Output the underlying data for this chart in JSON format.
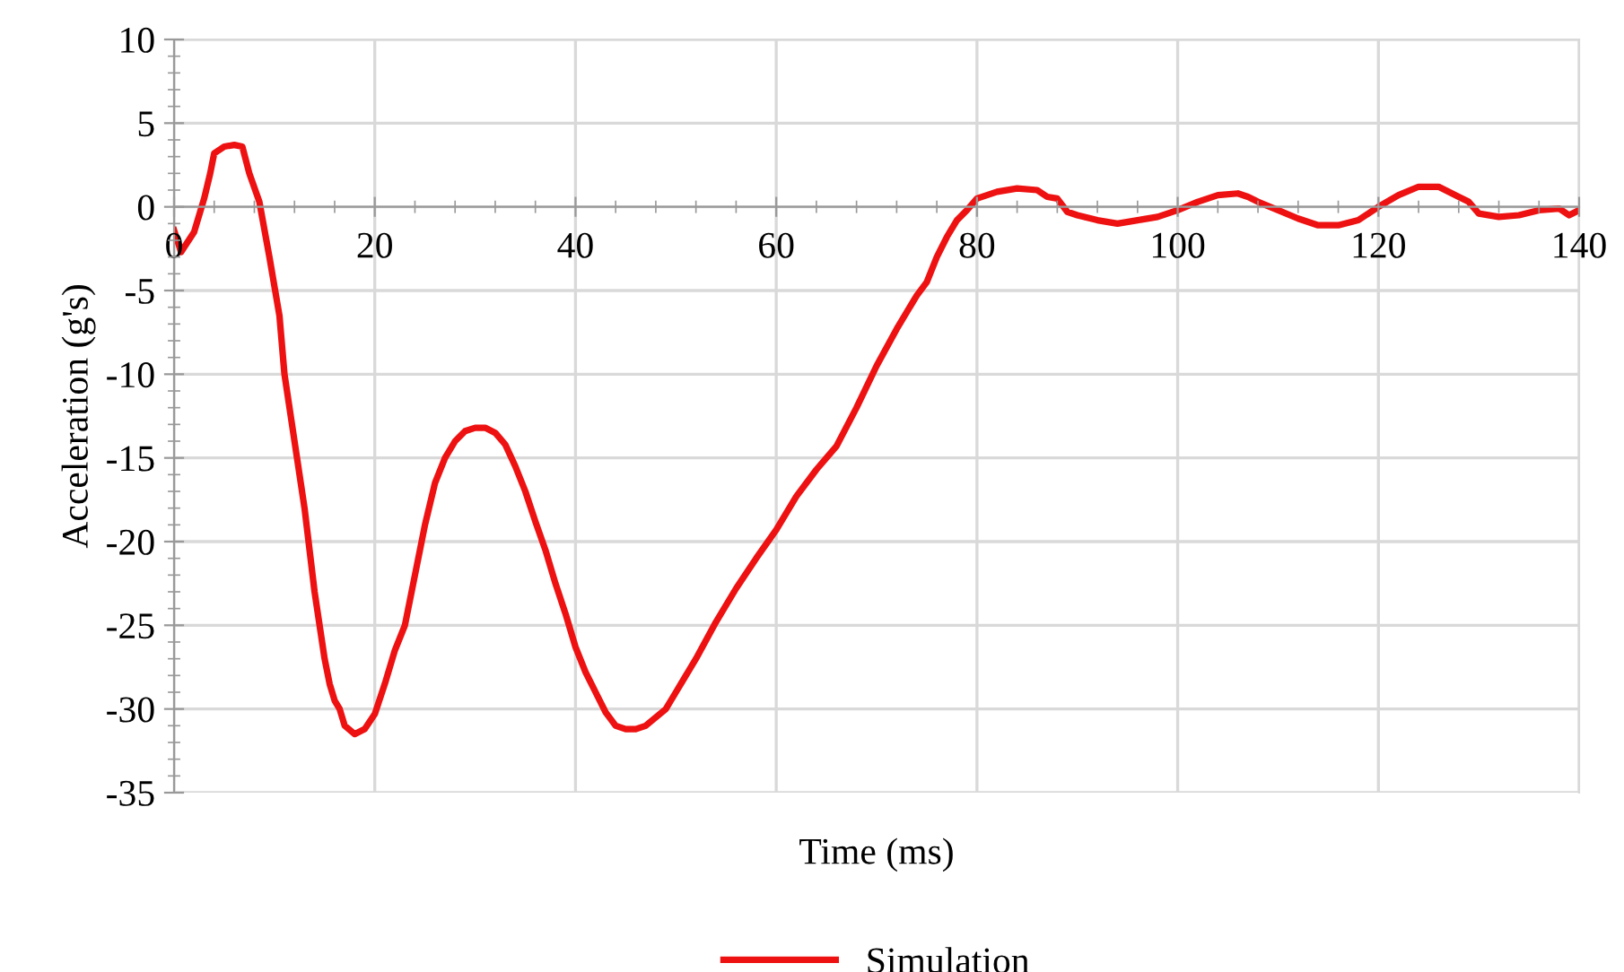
{
  "chart_data": {
    "type": "line",
    "xlabel": "Time (ms)",
    "ylabel": "Acceleration (g's)",
    "xlim": [
      0,
      140
    ],
    "xticks": [
      0,
      20,
      40,
      60,
      80,
      100,
      120,
      140
    ],
    "ylim": [
      -35,
      10
    ],
    "yticks": [
      -35,
      -30,
      -25,
      -20,
      -15,
      -10,
      -5,
      0,
      5,
      10
    ],
    "grid": true,
    "legend": "bottom",
    "marker": "none",
    "line_style": "solid",
    "series": [
      {
        "name": "Simulation",
        "color": "#ee1111",
        "x": [
          0,
          0.7,
          2,
          3,
          3.6,
          4,
          5,
          6,
          6.8,
          7.5,
          8.5,
          9.5,
          10.5,
          11,
          12,
          13,
          14,
          15,
          15.5,
          16,
          16.5,
          17,
          18,
          19,
          20,
          21,
          22,
          23,
          24,
          25,
          26,
          27,
          28,
          29,
          30,
          31,
          32,
          33,
          34,
          35,
          36,
          37,
          38,
          39,
          40,
          41,
          42,
          43,
          44,
          45,
          46,
          47,
          48,
          49,
          50,
          52,
          54,
          56,
          58,
          60,
          62,
          64,
          66,
          68,
          70,
          72,
          74,
          75,
          76,
          77,
          78,
          79,
          80,
          82,
          84,
          86,
          87,
          88,
          89,
          90,
          92,
          94,
          96,
          98,
          100,
          102,
          104,
          106,
          107,
          108,
          110,
          112,
          114,
          116,
          118,
          120,
          122,
          124,
          126,
          128,
          129,
          130,
          132,
          134,
          136,
          138,
          139,
          140
        ],
        "values": [
          -1.4,
          -2.7,
          -1.5,
          0.5,
          2,
          3.2,
          3.6,
          3.7,
          3.6,
          2,
          0.3,
          -3,
          -6.5,
          -10,
          -14,
          -18,
          -23,
          -27,
          -28.5,
          -29.5,
          -30,
          -31,
          -31.5,
          -31.2,
          -30.3,
          -28.5,
          -26.5,
          -25,
          -22,
          -19,
          -16.5,
          -15,
          -14,
          -13.4,
          -13.2,
          -13.2,
          -13.5,
          -14.2,
          -15.5,
          -17,
          -18.8,
          -20.5,
          -22.5,
          -24.3,
          -26.3,
          -27.8,
          -29,
          -30.2,
          -31,
          -31.2,
          -31.2,
          -31,
          -30.5,
          -30,
          -29,
          -27,
          -24.8,
          -22.8,
          -21,
          -19.3,
          -17.3,
          -15.7,
          -14.3,
          -12,
          -9.5,
          -7.3,
          -5.3,
          -4.5,
          -3,
          -1.8,
          -0.8,
          -0.2,
          0.5,
          0.9,
          1.1,
          1.0,
          0.6,
          0.5,
          -0.3,
          -0.5,
          -0.8,
          -1.0,
          -0.8,
          -0.6,
          -0.2,
          0.3,
          0.7,
          0.8,
          0.6,
          0.3,
          -0.2,
          -0.7,
          -1.1,
          -1.1,
          -0.8,
          0,
          0.7,
          1.2,
          1.2,
          0.6,
          0.3,
          -0.4,
          -0.6,
          -0.5,
          -0.2,
          -0.1,
          -0.5,
          -0.2
        ]
      }
    ]
  }
}
